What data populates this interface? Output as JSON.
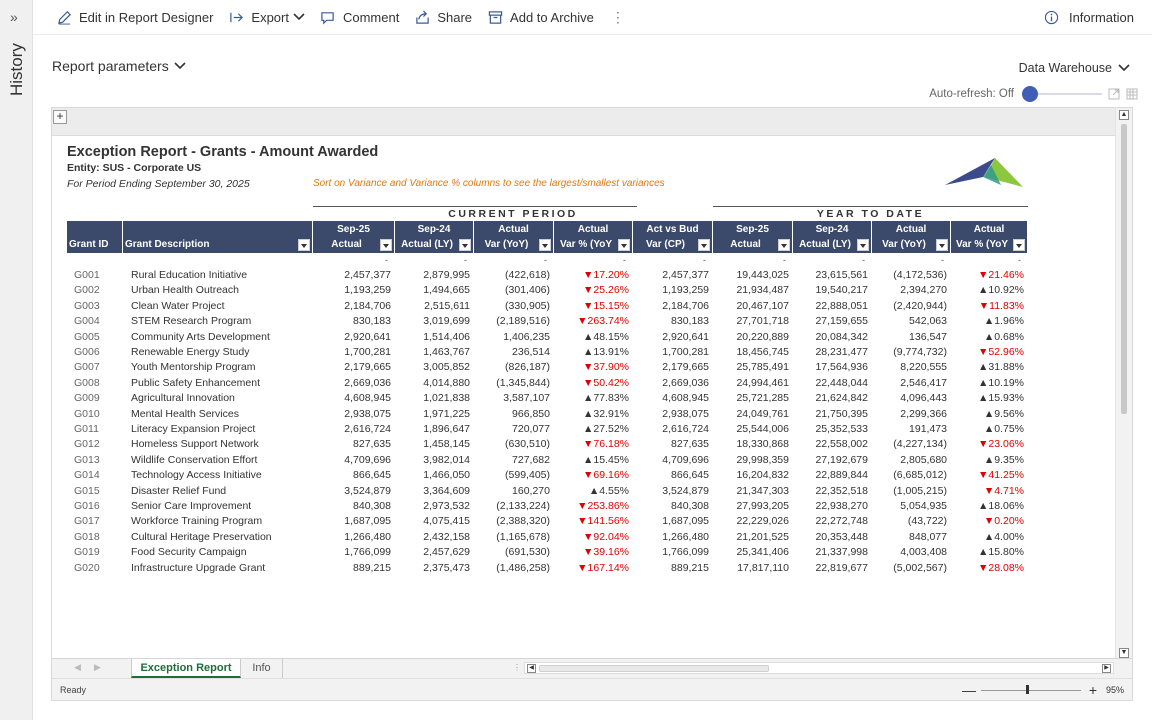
{
  "history": {
    "expand_glyph": "»",
    "label": "History"
  },
  "toolbar": {
    "edit_label": "Edit in Report Designer",
    "export_label": "Export",
    "comment_label": "Comment",
    "share_label": "Share",
    "archive_label": "Add to Archive",
    "more_glyph": "⋮",
    "info_label": "Information"
  },
  "params_label": "Report parameters",
  "datasource_label": "Data Warehouse",
  "autorefresh_label": "Auto-refresh: Off",
  "sheet_plus": "+",
  "report": {
    "title": "Exception Report - Grants - Amount Awarded",
    "entity": "Entity: SUS - Corporate US",
    "period": "For Period Ending September 30, 2025",
    "hint": "Sort on Variance and Variance % columns to see the largest/smallest variances",
    "group_current": "CURRENT PERIOD",
    "group_ytd": "YEAR TO DATE",
    "headers": [
      {
        "l1": "",
        "l2": "Grant ID"
      },
      {
        "l1": "",
        "l2": "Grant Description"
      },
      {
        "l1": "Sep-25",
        "l2": "Actual"
      },
      {
        "l1": "Sep-24",
        "l2": "Actual (LY)"
      },
      {
        "l1": "Actual",
        "l2": "Var (YoY)"
      },
      {
        "l1": "Actual",
        "l2": "Var % (YoY"
      },
      {
        "l1": "Act vs Bud",
        "l2": "Var (CP)"
      },
      {
        "l1": "Sep-25",
        "l2": "Actual"
      },
      {
        "l1": "Sep-24",
        "l2": "Actual (LY)"
      },
      {
        "l1": "Actual",
        "l2": "Var (YoY)"
      },
      {
        "l1": "Actual",
        "l2": "Var % (YoY"
      }
    ],
    "dash": "-",
    "rows": [
      [
        "G001",
        "Rural Education Initiative",
        "2,457,377",
        "2,879,995",
        "(422,618)",
        "▼17.20%",
        "2,457,377",
        "19,443,025",
        "23,615,561",
        "(4,172,536)",
        "▼21.46%"
      ],
      [
        "G002",
        "Urban Health Outreach",
        "1,193,259",
        "1,494,665",
        "(301,406)",
        "▼25.26%",
        "1,193,259",
        "21,934,487",
        "19,540,217",
        "2,394,270",
        "▲10.92%"
      ],
      [
        "G003",
        "Clean Water Project",
        "2,184,706",
        "2,515,611",
        "(330,905)",
        "▼15.15%",
        "2,184,706",
        "20,467,107",
        "22,888,051",
        "(2,420,944)",
        "▼11.83%"
      ],
      [
        "G004",
        "STEM Research Program",
        "830,183",
        "3,019,699",
        "(2,189,516)",
        "▼263.74%",
        "830,183",
        "27,701,718",
        "27,159,655",
        "542,063",
        "▲1.96%"
      ],
      [
        "G005",
        "Community Arts Development",
        "2,920,641",
        "1,514,406",
        "1,406,235",
        "▲48.15%",
        "2,920,641",
        "20,220,889",
        "20,084,342",
        "136,547",
        "▲0.68%"
      ],
      [
        "G006",
        "Renewable Energy Study",
        "1,700,281",
        "1,463,767",
        "236,514",
        "▲13.91%",
        "1,700,281",
        "18,456,745",
        "28,231,477",
        "(9,774,732)",
        "▼52.96%"
      ],
      [
        "G007",
        "Youth Mentorship Program",
        "2,179,665",
        "3,005,852",
        "(826,187)",
        "▼37.90%",
        "2,179,665",
        "25,785,491",
        "17,564,936",
        "8,220,555",
        "▲31.88%"
      ],
      [
        "G008",
        "Public Safety Enhancement",
        "2,669,036",
        "4,014,880",
        "(1,345,844)",
        "▼50.42%",
        "2,669,036",
        "24,994,461",
        "22,448,044",
        "2,546,417",
        "▲10.19%"
      ],
      [
        "G009",
        "Agricultural Innovation",
        "4,608,945",
        "1,021,838",
        "3,587,107",
        "▲77.83%",
        "4,608,945",
        "25,721,285",
        "21,624,842",
        "4,096,443",
        "▲15.93%"
      ],
      [
        "G010",
        "Mental Health Services",
        "2,938,075",
        "1,971,225",
        "966,850",
        "▲32.91%",
        "2,938,075",
        "24,049,761",
        "21,750,395",
        "2,299,366",
        "▲9.56%"
      ],
      [
        "G011",
        "Literacy Expansion Project",
        "2,616,724",
        "1,896,647",
        "720,077",
        "▲27.52%",
        "2,616,724",
        "25,544,006",
        "25,352,533",
        "191,473",
        "▲0.75%"
      ],
      [
        "G012",
        "Homeless Support Network",
        "827,635",
        "1,458,145",
        "(630,510)",
        "▼76.18%",
        "827,635",
        "18,330,868",
        "22,558,002",
        "(4,227,134)",
        "▼23.06%"
      ],
      [
        "G013",
        "Wildlife Conservation Effort",
        "4,709,696",
        "3,982,014",
        "727,682",
        "▲15.45%",
        "4,709,696",
        "29,998,359",
        "27,192,679",
        "2,805,680",
        "▲9.35%"
      ],
      [
        "G014",
        "Technology Access Initiative",
        "866,645",
        "1,466,050",
        "(599,405)",
        "▼69.16%",
        "866,645",
        "16,204,832",
        "22,889,844",
        "(6,685,012)",
        "▼41.25%"
      ],
      [
        "G015",
        "Disaster Relief Fund",
        "3,524,879",
        "3,364,609",
        "160,270",
        "▲4.55%",
        "3,524,879",
        "21,347,303",
        "22,352,518",
        "(1,005,215)",
        "▼4.71%"
      ],
      [
        "G016",
        "Senior Care Improvement",
        "840,308",
        "2,973,532",
        "(2,133,224)",
        "▼253.86%",
        "840,308",
        "27,993,205",
        "22,938,270",
        "5,054,935",
        "▲18.06%"
      ],
      [
        "G017",
        "Workforce Training Program",
        "1,687,095",
        "4,075,415",
        "(2,388,320)",
        "▼141.56%",
        "1,687,095",
        "22,229,026",
        "22,272,748",
        "(43,722)",
        "▼0.20%"
      ],
      [
        "G018",
        "Cultural Heritage Preservation",
        "1,266,480",
        "2,432,158",
        "(1,165,678)",
        "▼92.04%",
        "1,266,480",
        "21,201,525",
        "20,353,448",
        "848,077",
        "▲4.00%"
      ],
      [
        "G019",
        "Food Security Campaign",
        "1,766,099",
        "2,457,629",
        "(691,530)",
        "▼39.16%",
        "1,766,099",
        "25,341,406",
        "21,337,998",
        "4,003,408",
        "▲15.80%"
      ],
      [
        "G020",
        "Infrastructure Upgrade Grant",
        "889,215",
        "2,375,473",
        "(1,486,258)",
        "▼167.14%",
        "889,215",
        "17,817,110",
        "22,819,677",
        "(5,002,567)",
        "▼28.08%"
      ]
    ]
  },
  "tabs": [
    {
      "label": "Exception Report",
      "active": true
    },
    {
      "label": "Info",
      "active": false
    }
  ],
  "status": {
    "ready": "Ready",
    "zoom_minus": "—",
    "zoom_plus": "+",
    "zoom_value": "95%",
    "zoom_fraction": 0.45
  },
  "colors": {
    "header_bg": "#3b4a6b",
    "negative": "#e00000",
    "hint": "#e07a10",
    "active_tab": "#1e6e3a",
    "toggle": "#3f5fb5"
  }
}
